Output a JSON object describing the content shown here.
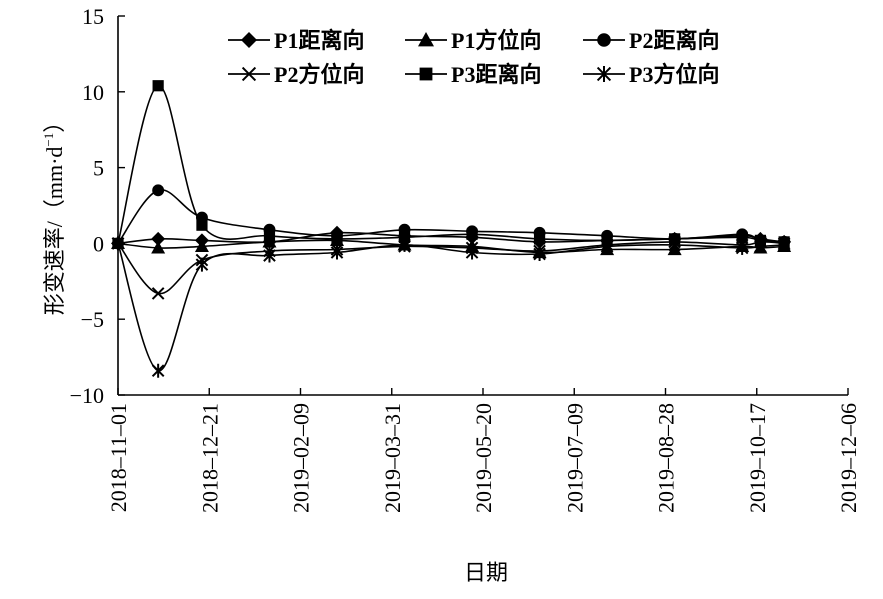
{
  "chart_data": {
    "type": "line",
    "title": "",
    "xlabel": "日期",
    "ylabel": "形变速率/（mm·d",
    "ylabel_sup": "−1",
    "ylabel_close": "）",
    "ylim": [
      -10,
      15
    ],
    "yticks": [
      -10,
      -5,
      0,
      5,
      10,
      15
    ],
    "ytick_labels": [
      "−10",
      "−5",
      "0",
      "5",
      "10",
      "15"
    ],
    "xlim": [
      "2018-11-01",
      "2019-12-06"
    ],
    "xticks": [
      "2018-11-01",
      "2018-12-21",
      "2019-02-09",
      "2019-03-31",
      "2019-05-20",
      "2019-07-09",
      "2019-08-28",
      "2019-10-17",
      "2019-12-06"
    ],
    "xtick_labels": [
      "2018–11–01",
      "2018–12–21",
      "2019–02–09",
      "2019–03–31",
      "2019–05–20",
      "2019–07–09",
      "2019–08–28",
      "2019–10–17",
      "2019–12–06"
    ],
    "grid": false,
    "legend_position": "top",
    "series": [
      {
        "name": "P1距离向",
        "marker": "diamond",
        "points": [
          [
            "2018-11-01",
            0.0
          ],
          [
            "2018-11-23",
            0.3
          ],
          [
            "2018-12-17",
            0.2
          ],
          [
            "2019-01-23",
            0.1
          ],
          [
            "2019-03-01",
            0.7
          ],
          [
            "2019-04-07",
            0.5
          ],
          [
            "2019-05-14",
            0.4
          ],
          [
            "2019-06-20",
            0.1
          ],
          [
            "2019-07-27",
            0.2
          ],
          [
            "2019-09-02",
            0.3
          ],
          [
            "2019-10-09",
            0.5
          ],
          [
            "2019-10-19",
            0.3
          ],
          [
            "2019-11-01",
            0.1
          ]
        ]
      },
      {
        "name": "P1方位向",
        "marker": "triangle",
        "points": [
          [
            "2018-11-01",
            0.0
          ],
          [
            "2018-11-23",
            -0.3
          ],
          [
            "2018-12-17",
            -0.2
          ],
          [
            "2019-01-23",
            0.1
          ],
          [
            "2019-03-01",
            0.2
          ],
          [
            "2019-04-07",
            -0.1
          ],
          [
            "2019-05-14",
            -0.2
          ],
          [
            "2019-06-20",
            -0.6
          ],
          [
            "2019-07-27",
            -0.4
          ],
          [
            "2019-09-02",
            -0.4
          ],
          [
            "2019-10-09",
            -0.2
          ],
          [
            "2019-10-19",
            -0.3
          ],
          [
            "2019-11-01",
            -0.2
          ]
        ]
      },
      {
        "name": "P2距离向",
        "marker": "circle",
        "points": [
          [
            "2018-11-01",
            0.0
          ],
          [
            "2018-11-23",
            3.5
          ],
          [
            "2018-12-17",
            1.7
          ],
          [
            "2019-01-23",
            0.9
          ],
          [
            "2019-03-01",
            0.5
          ],
          [
            "2019-04-07",
            0.9
          ],
          [
            "2019-05-14",
            0.8
          ],
          [
            "2019-06-20",
            0.7
          ],
          [
            "2019-07-27",
            0.5
          ],
          [
            "2019-09-02",
            0.3
          ],
          [
            "2019-10-09",
            0.6
          ],
          [
            "2019-10-19",
            0.2
          ],
          [
            "2019-11-01",
            0.1
          ]
        ]
      },
      {
        "name": "P2方位向",
        "marker": "x",
        "points": [
          [
            "2018-11-01",
            0.0
          ],
          [
            "2018-11-23",
            -3.3
          ],
          [
            "2018-12-17",
            -1.1
          ],
          [
            "2019-01-23",
            -0.5
          ],
          [
            "2019-03-01",
            -0.4
          ],
          [
            "2019-04-07",
            -0.2
          ],
          [
            "2019-05-14",
            -0.3
          ],
          [
            "2019-06-20",
            -0.5
          ],
          [
            "2019-07-27",
            -0.1
          ],
          [
            "2019-09-02",
            0.1
          ],
          [
            "2019-10-09",
            -0.1
          ],
          [
            "2019-10-19",
            0.1
          ],
          [
            "2019-11-01",
            0.0
          ]
        ]
      },
      {
        "name": "P3距离向",
        "marker": "square",
        "points": [
          [
            "2018-11-01",
            0.0
          ],
          [
            "2018-11-23",
            10.4
          ],
          [
            "2018-12-17",
            1.2
          ],
          [
            "2019-01-23",
            0.5
          ],
          [
            "2019-03-01",
            0.3
          ],
          [
            "2019-04-07",
            0.4
          ],
          [
            "2019-05-14",
            0.6
          ],
          [
            "2019-06-20",
            0.3
          ],
          [
            "2019-07-27",
            0.2
          ],
          [
            "2019-09-02",
            0.3
          ],
          [
            "2019-10-09",
            0.4
          ],
          [
            "2019-10-19",
            0.2
          ],
          [
            "2019-11-01",
            0.1
          ]
        ]
      },
      {
        "name": "P3方位向",
        "marker": "asterisk",
        "points": [
          [
            "2018-11-01",
            0.0
          ],
          [
            "2018-11-23",
            -8.4
          ],
          [
            "2018-12-17",
            -1.4
          ],
          [
            "2019-01-23",
            -0.8
          ],
          [
            "2019-03-01",
            -0.6
          ],
          [
            "2019-04-07",
            -0.1
          ],
          [
            "2019-05-14",
            -0.6
          ],
          [
            "2019-06-20",
            -0.7
          ],
          [
            "2019-07-27",
            -0.2
          ],
          [
            "2019-09-02",
            -0.1
          ],
          [
            "2019-10-09",
            -0.3
          ],
          [
            "2019-10-19",
            -0.2
          ],
          [
            "2019-11-01",
            -0.1
          ]
        ]
      }
    ]
  }
}
